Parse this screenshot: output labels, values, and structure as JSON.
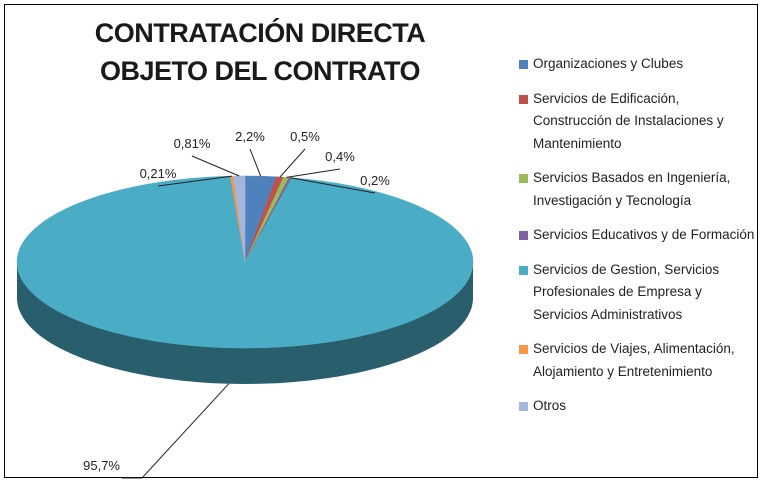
{
  "chart_data": {
    "type": "pie",
    "title": [
      "CONTRATACIÓN DIRECTA",
      "OBJETO DEL CONTRATO"
    ],
    "categories": [
      "Organizaciones y Clubes",
      "Servicios de Edificación, Construcción de Instalaciones y Mantenimiento",
      "Servicios Basados en Ingeniería, Investigación y Tecnología",
      "Servicios Educativos y de Formación",
      "Servicios de Gestion, Servicios Profesionales de Empresa y Servicios Administrativos",
      "Servicios de Viajes, Alimentación, Alojamiento y Entretenimiento",
      "Otros"
    ],
    "values": [
      2.2,
      0.5,
      0.4,
      0.2,
      95.7,
      0.21,
      0.81
    ],
    "value_labels": [
      "2,2%",
      "0,5%",
      "0,4%",
      "0,2%",
      "95,7%",
      "0,21%",
      "0,81%"
    ],
    "colors": [
      "#4f81bd",
      "#c0504d",
      "#9bbb59",
      "#8064a2",
      "#4bacc6",
      "#f79646",
      "#a3b7dd"
    ],
    "legend": "right"
  }
}
